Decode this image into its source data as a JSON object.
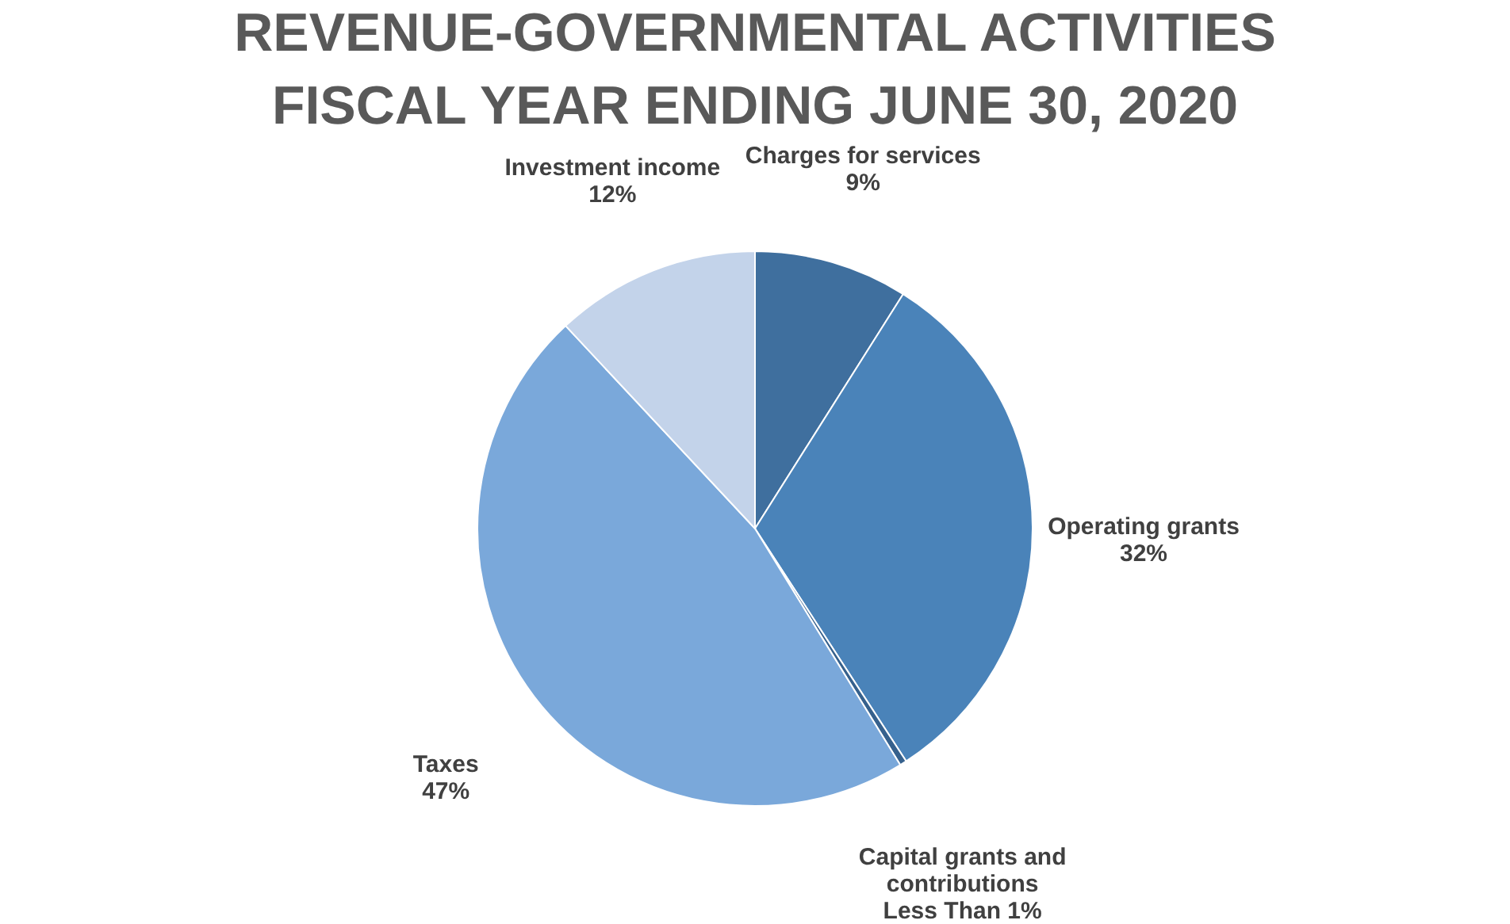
{
  "chart_data": {
    "type": "pie",
    "title": [
      "REVENUE-GOVERNMENTAL  ACTIVITIES",
      "FISCAL YEAR ENDING JUNE 30, 2020"
    ],
    "categories": [
      "Charges for services",
      "Operating grants",
      "Capital grants and contributions",
      "Taxes",
      "Investment income"
    ],
    "values": [
      9,
      32,
      0.4,
      47,
      12
    ],
    "value_labels": [
      "9%",
      "32%",
      "Less Than 1%",
      "47%",
      "12%"
    ],
    "colors": [
      "#3f6f9e",
      "#4a83b9",
      "#36618d",
      "#7aa8da",
      "#c3d3ea"
    ],
    "legend": false
  }
}
